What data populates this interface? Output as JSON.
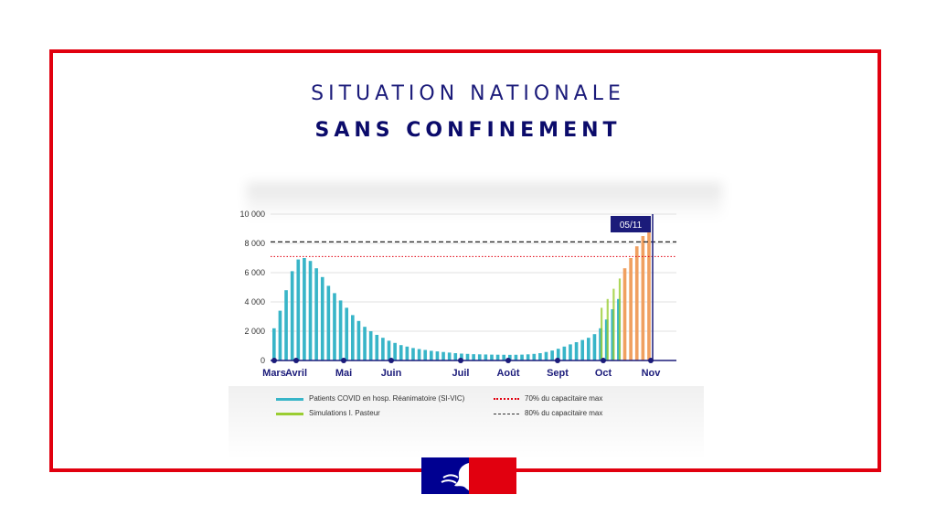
{
  "title_line1": "SITUATION NATIONALE",
  "title_line2": "SANS CONFINEMENT",
  "marker_label": "05/11",
  "legend": {
    "sivic": "Patients COVID en hosp. Réanimatoire (SI-VIC)",
    "pasteur": "Simulations I. Pasteur",
    "capacity70": "70% du capacitaire max",
    "capacity80": "80% du capacitaire max"
  },
  "chart_data": {
    "type": "bar",
    "title": "",
    "xlabel": "",
    "ylabel": "",
    "ylim": [
      0,
      10000
    ],
    "y_ticks": [
      0,
      2000,
      4000,
      6000,
      8000,
      10000
    ],
    "y_tick_labels": [
      "0",
      "2 000",
      "4 000",
      "6 000",
      "8 000",
      "10 000"
    ],
    "x_labels": [
      "Mars",
      "Avril",
      "Mai",
      "Juin",
      "Juil",
      "Août",
      "Sept",
      "Oct",
      "Nov"
    ],
    "colors": {
      "sivic": "#38b5c8",
      "pasteur": "#9acd32",
      "simulation_orange": "#f0a060",
      "line70": "#e1000f",
      "line80": "#222222",
      "marker": "#1b1b7a"
    },
    "reference_lines": [
      {
        "name": "70% du capacitaire max",
        "value": 7100,
        "style": "dotted",
        "color": "#e1000f"
      },
      {
        "name": "80% du capacitaire max",
        "value": 8100,
        "style": "dashed",
        "color": "#222222"
      }
    ],
    "series": [
      {
        "name": "Patients COVID en hosp. Réanimatoire (SI-VIC)",
        "values": [
          2200,
          3400,
          4800,
          6100,
          6900,
          7000,
          6800,
          6300,
          5700,
          5100,
          4600,
          4100,
          3600,
          3100,
          2700,
          2300,
          2000,
          1750,
          1550,
          1350,
          1200,
          1050,
          950,
          850,
          780,
          720,
          660,
          620,
          580,
          540,
          500,
          470,
          450,
          430,
          420,
          410,
          400,
          395,
          390,
          385,
          390,
          400,
          420,
          450,
          500,
          580,
          680,
          800,
          950,
          1100,
          1250,
          1400,
          1550,
          1800,
          2200,
          2800,
          3500,
          4200
        ]
      },
      {
        "name": "Simulations I. Pasteur",
        "values": [
          3600,
          4200,
          4900,
          5600,
          6300,
          7000,
          7800,
          8500,
          9200
        ]
      }
    ]
  }
}
